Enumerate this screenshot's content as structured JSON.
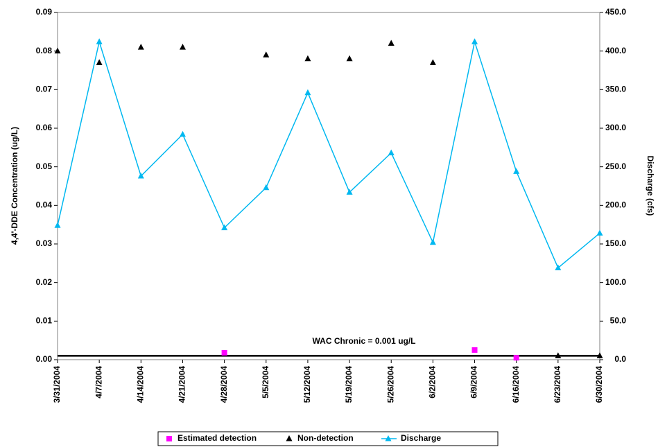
{
  "chart_data": {
    "type": "line",
    "y_label": "4,4'-DDE Concentration (ug/L)",
    "y2_label": "Discharge (cfs)",
    "categories": [
      "3/31/2004",
      "4/7/2004",
      "4/14/2004",
      "4/21/2004",
      "4/28/2004",
      "5/5/2004",
      "5/12/2004",
      "5/19/2004",
      "5/26/2004",
      "6/2/2004",
      "6/9/2004",
      "6/16/2004",
      "6/23/2004",
      "6/30/2004"
    ],
    "series": [
      {
        "name": "Estimated detection",
        "color": "#ff00ff",
        "marker": "square",
        "line": false,
        "values": [
          null,
          null,
          null,
          null,
          0.0018,
          null,
          null,
          null,
          null,
          null,
          0.0025,
          0.0005,
          null,
          null
        ]
      },
      {
        "name": "Non-detection",
        "color": "#000000",
        "marker": "triangle",
        "line": false,
        "values": [
          0.08,
          0.077,
          0.081,
          0.081,
          null,
          0.079,
          0.078,
          0.078,
          0.082,
          0.077,
          null,
          null,
          0.001,
          0.001
        ]
      },
      {
        "name": "Discharge",
        "color": "#00b8f0",
        "marker": "triangle",
        "line": true,
        "axis": "y2",
        "values": [
          174,
          412,
          238,
          292,
          171,
          223,
          346,
          217,
          268,
          152,
          412,
          244,
          119,
          164
        ]
      }
    ],
    "reference_line": {
      "value": 0.001,
      "label": "WAC Chronic = 0.001 ug/L",
      "color": "#000000"
    },
    "ylim": [
      0,
      0.09
    ],
    "yticks": [
      {
        "value": 0,
        "label": "0.00"
      },
      {
        "value": 0.01,
        "label": "0.01"
      },
      {
        "value": 0.02,
        "label": "0.02"
      },
      {
        "value": 0.03,
        "label": "0.03"
      },
      {
        "value": 0.04,
        "label": "0.04"
      },
      {
        "value": 0.05,
        "label": "0.05"
      },
      {
        "value": 0.06,
        "label": "0.06"
      },
      {
        "value": 0.07,
        "label": "0.07"
      },
      {
        "value": 0.08,
        "label": "0.08"
      },
      {
        "value": 0.09,
        "label": "0.09"
      }
    ],
    "y2lim": [
      0,
      450
    ],
    "y2ticks": [
      {
        "value": 0,
        "label": "0.0"
      },
      {
        "value": 50,
        "label": "50.0"
      },
      {
        "value": 100,
        "label": "100.0"
      },
      {
        "value": 150,
        "label": "150.0"
      },
      {
        "value": 200,
        "label": "200.0"
      },
      {
        "value": 250,
        "label": "250.0"
      },
      {
        "value": 300,
        "label": "300.0"
      },
      {
        "value": 350,
        "label": "350.0"
      },
      {
        "value": 400,
        "label": "400.0"
      },
      {
        "value": 450,
        "label": "450.0"
      }
    ],
    "grid": false,
    "legend": "bottom"
  }
}
